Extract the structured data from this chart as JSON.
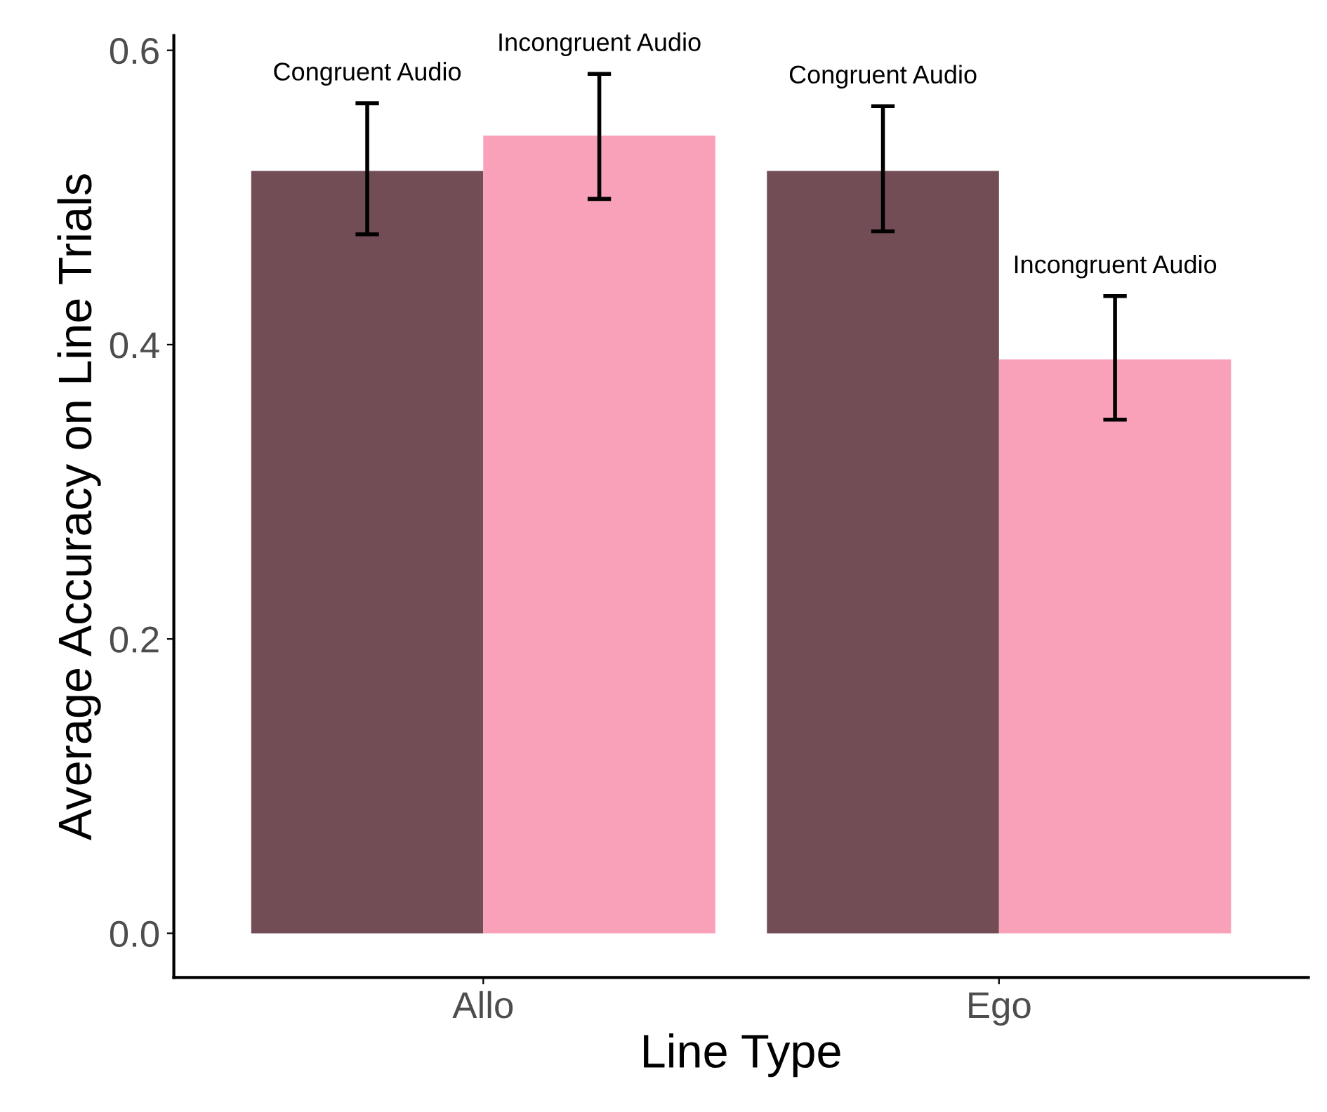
{
  "chart_data": {
    "type": "bar",
    "xlabel": "Line Type",
    "ylabel": "Average Accuracy on Line Trials",
    "categories": [
      "Allo",
      "Ego"
    ],
    "series": [
      {
        "color": "#734d55",
        "values": [
          0.518,
          0.518
        ],
        "errors": [
          [
            0.475,
            0.564
          ],
          [
            0.477,
            0.562
          ]
        ]
      },
      {
        "color": "#f9a1b8",
        "values": [
          0.542,
          0.39
        ],
        "errors": [
          [
            0.499,
            0.584
          ],
          [
            0.349,
            0.433
          ]
        ]
      }
    ],
    "annotations": [
      "Congruent Audio",
      "Congruent Audio",
      "Incongruent Audio",
      "Incongruent Audio"
    ],
    "ylim": [
      -0.03,
      0.61
    ],
    "yticks": [
      {
        "value": 0,
        "label": "0.0"
      },
      0.2,
      0.4,
      0.6
    ],
    "grid": false,
    "legend": false
  }
}
